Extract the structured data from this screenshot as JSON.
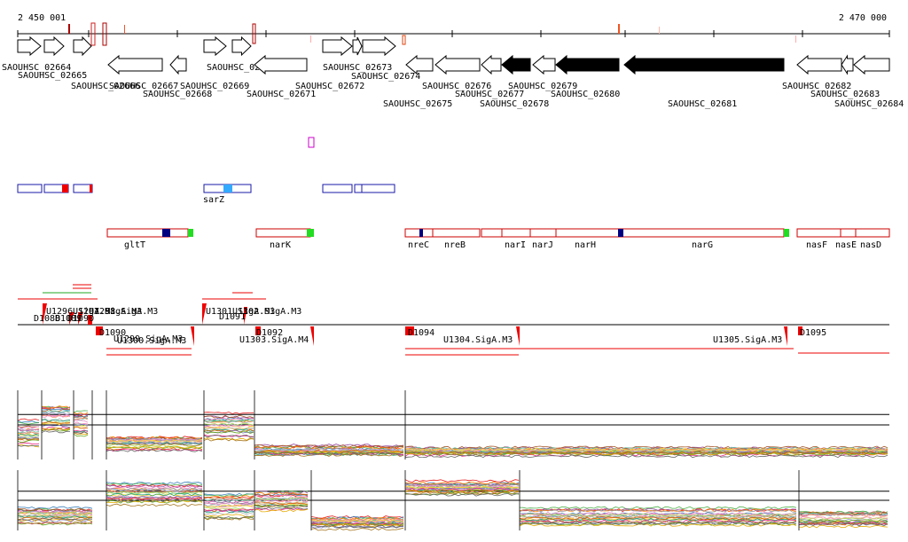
{
  "axis": {
    "start_label": "2 450 001",
    "end_label": "2 470 000",
    "start": 2450001,
    "end": 2470000
  },
  "genes": [
    {
      "id": "SAOUHSC_02664",
      "strand": "+",
      "filled": false
    },
    {
      "id": "SAOUHSC_02665",
      "strand": "+",
      "filled": false
    },
    {
      "id": "SAOUHSC_02666",
      "strand": "+",
      "filled": false
    },
    {
      "id": "SAOUHSC_02667",
      "strand": "-",
      "filled": false
    },
    {
      "id": "SAOUHSC_02668",
      "strand": "-",
      "filled": false
    },
    {
      "id": "SAOUHSC_02669",
      "strand": "+",
      "filled": false
    },
    {
      "id": "SAOUHSC_02670",
      "strand": "+",
      "filled": false
    },
    {
      "id": "SAOUHSC_02671",
      "strand": "-",
      "filled": false
    },
    {
      "id": "SAOUHSC_02672",
      "strand": "+",
      "filled": false
    },
    {
      "id": "SAOUHSC_02673",
      "strand": "+",
      "filled": false
    },
    {
      "id": "SAOUHSC_02674",
      "strand": "+",
      "filled": false
    },
    {
      "id": "SAOUHSC_02675",
      "strand": "-",
      "filled": false
    },
    {
      "id": "SAOUHSC_02676",
      "strand": "-",
      "filled": false
    },
    {
      "id": "SAOUHSC_02677",
      "strand": "-",
      "filled": false
    },
    {
      "id": "SAOUHSC_02678",
      "strand": "-",
      "filled": true
    },
    {
      "id": "SAOUHSC_02679",
      "strand": "-",
      "filled": false
    },
    {
      "id": "SAOUHSC_02680",
      "strand": "-",
      "filled": true
    },
    {
      "id": "SAOUHSC_02681",
      "strand": "-",
      "filled": true
    },
    {
      "id": "SAOUHSC_02682",
      "strand": "-",
      "filled": false
    },
    {
      "id": "SAOUHSC_02683",
      "strand": "-",
      "filled": false
    },
    {
      "id": "SAOUHSC_02684",
      "strand": "-",
      "filled": false
    }
  ],
  "blue_features": [
    {
      "label": ""
    },
    {
      "label": ""
    },
    {
      "label": ""
    },
    {
      "label": "sarZ"
    },
    {
      "label": ""
    },
    {
      "label": ""
    }
  ],
  "operons": [
    {
      "name": "gltT"
    },
    {
      "name": "narK"
    },
    {
      "name": "nreC"
    },
    {
      "name": "nreB"
    },
    {
      "name": "narI"
    },
    {
      "name": "narJ"
    },
    {
      "name": "narH"
    },
    {
      "name": "narG"
    },
    {
      "name": "nasF"
    },
    {
      "name": "nasE"
    },
    {
      "name": "nasD"
    }
  ],
  "segments": {
    "upper": [
      "U1296.SigA.M3",
      "U1297.SigA.M3",
      "U1298.SigA.M3",
      "U1301.SigA.M3",
      "U1302.SigA.M3"
    ],
    "upper_D": [
      "D1088",
      "D1089",
      "D1090",
      "D1091"
    ],
    "lower_D": [
      "D1090",
      "D1092",
      "D1094",
      "D1095"
    ],
    "lower": [
      "U1299.SigA.M3",
      "U1300.SigA.M3",
      "U1303.SigA.M4",
      "U1304.SigA.M3",
      "U1305.SigA.M3"
    ]
  },
  "colors": {
    "gene_outline": "#000000",
    "feature_blue": "#1a1aa8",
    "operon_red": "#cc0000",
    "marker_green": "#22dd22",
    "marker_navy": "#000080",
    "highlight_cyan": "#33aaff",
    "magenta": "#cc00cc"
  }
}
